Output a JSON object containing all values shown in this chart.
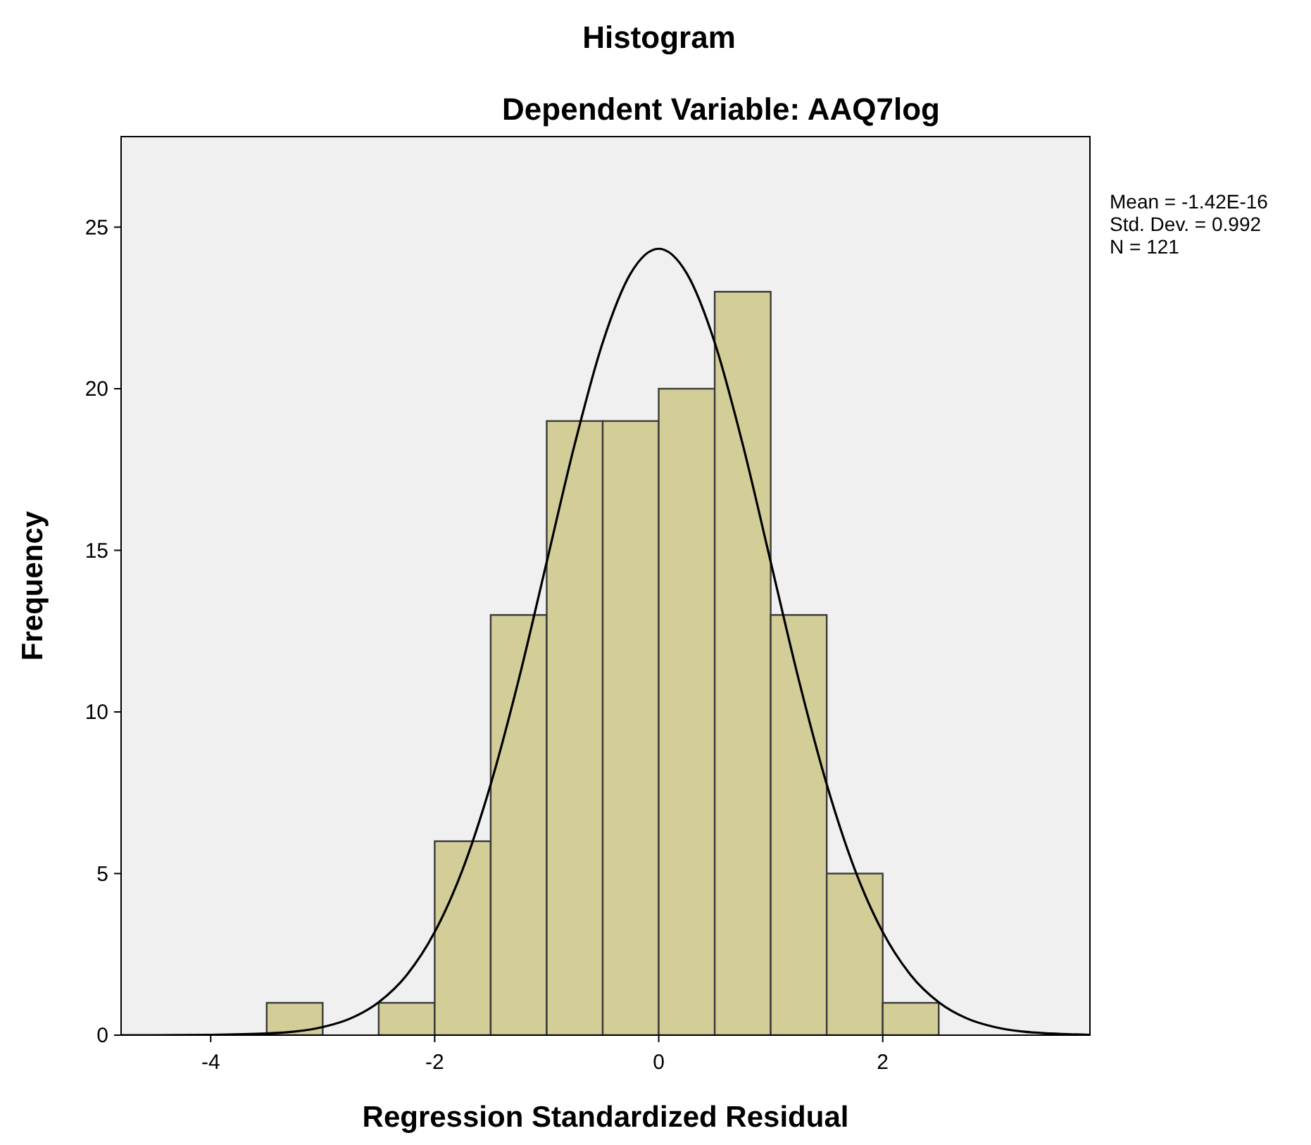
{
  "chart_data": {
    "type": "histogram",
    "title": "Histogram",
    "subtitle": "Dependent Variable: AAQ7log",
    "xlabel": "Regression Standardized Residual",
    "ylabel": "Frequency",
    "bins": [
      -3.5,
      -3,
      -2.5,
      -2,
      -1.5,
      -1,
      -0.5,
      0,
      0.5,
      1,
      1.5,
      2,
      2.5
    ],
    "values": [
      1,
      0,
      1,
      6,
      13,
      19,
      19,
      20,
      23,
      13,
      5,
      1
    ],
    "color": "#d3ce97",
    "series": [
      {
        "type": "line",
        "color": "#000000",
        "x": [
          -4.8,
          -4.5,
          -4,
          -3.5,
          -3.25,
          -3,
          -2.75,
          -2.5,
          -2.25,
          -2,
          -1.75,
          -1.5,
          -1.25,
          -1,
          -0.75,
          -0.5,
          -0.25,
          0,
          0.25,
          0.5,
          0.75,
          1,
          1.25,
          1.5,
          1.75,
          2,
          2.25,
          2.5,
          2.75,
          3,
          3.25,
          3.5,
          3.85
        ],
        "values": [
          0,
          0,
          0.01,
          0.05,
          0.11,
          0.25,
          0.52,
          1.02,
          1.86,
          3.19,
          5.13,
          7.76,
          11.0,
          14.64,
          18.28,
          21.43,
          23.57,
          24.33,
          23.57,
          21.43,
          18.28,
          14.64,
          11.0,
          7.76,
          5.13,
          3.19,
          1.86,
          1.02,
          0.52,
          0.25,
          0.11,
          0.05,
          0.01
        ]
      }
    ],
    "xlim": [
      -4.8,
      3.85
    ],
    "ylim": [
      0,
      27.8
    ],
    "xticks": [
      -4,
      -2,
      0,
      2
    ],
    "yticks": [
      0,
      5,
      10,
      15,
      20,
      25
    ],
    "grid": false,
    "annotations": [
      "Mean = -1.42E-16",
      "Std. Dev. = 0.992",
      "N = 121"
    ]
  }
}
